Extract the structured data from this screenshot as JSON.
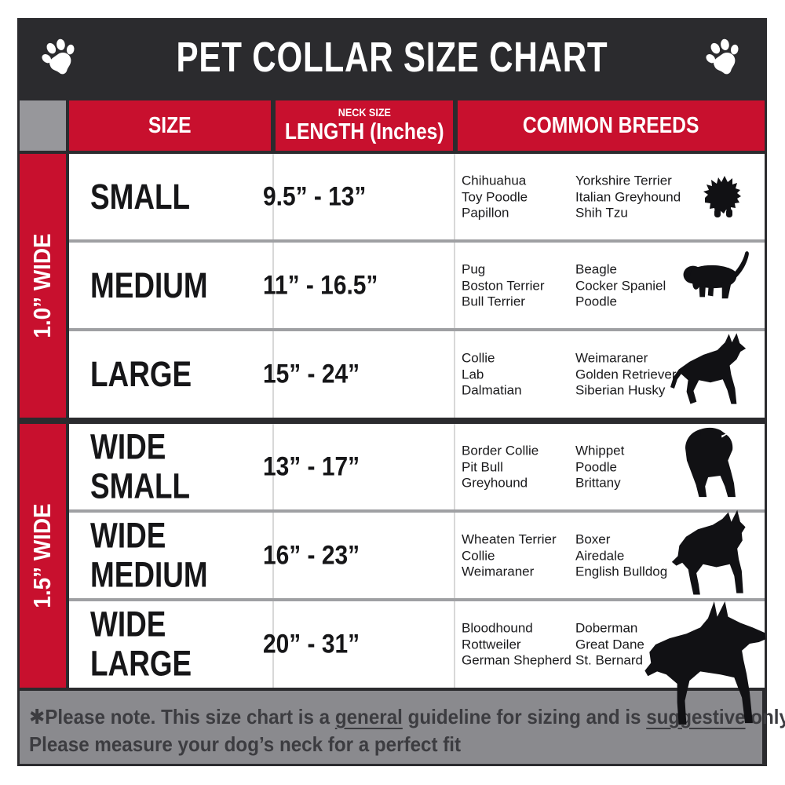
{
  "title": "PET COLLAR SIZE CHART",
  "colors": {
    "accent_red": "#c8102e",
    "header_dark": "#2b2b2e",
    "corner_gray": "#97979b",
    "footer_gray": "#8a8a8e"
  },
  "icons": {
    "header_left": "paw-icon",
    "header_right": "paw-icon",
    "row_dogs": [
      "pomeranian-dog-silhouette",
      "beagle-dog-silhouette",
      "german-shepherd-dog-silhouette",
      "bulldog-dog-silhouette",
      "pit-bull-dog-silhouette",
      "doberman-dog-silhouette"
    ]
  },
  "columns": {
    "size": "SIZE",
    "neck_size_small": "NECK SIZE",
    "neck_size_big": "LENGTH (Inches)",
    "breeds": "COMMON BREEDS"
  },
  "groups": [
    {
      "label": "1.0” WIDE"
    },
    {
      "label": "1.5” WIDE"
    }
  ],
  "rows": [
    {
      "size": "SMALL",
      "length": "9.5” - 13”",
      "breeds_primary": [
        "Chihuahua",
        "Toy Poodle",
        "Papillon"
      ],
      "breeds_secondary": [
        "Yorkshire Terrier",
        "Italian Greyhound",
        "Shih Tzu"
      ]
    },
    {
      "size": "MEDIUM",
      "length": "11” - 16.5”",
      "breeds_primary": [
        "Pug",
        "Boston Terrier",
        "Bull Terrier"
      ],
      "breeds_secondary": [
        "Beagle",
        "Cocker Spaniel",
        "Poodle"
      ]
    },
    {
      "size": "LARGE",
      "length": "15” - 24”",
      "breeds_primary": [
        "Collie",
        "Lab",
        "Dalmatian"
      ],
      "breeds_secondary": [
        "Weimaraner",
        "Golden Retriever",
        "Siberian Husky"
      ]
    },
    {
      "size": "WIDE SMALL",
      "length": "13” - 17”",
      "breeds_primary": [
        "Border Collie",
        "Pit Bull",
        "Greyhound"
      ],
      "breeds_secondary": [
        "Whippet",
        "Poodle",
        "Brittany"
      ]
    },
    {
      "size": "WIDE MEDIUM",
      "length": "16” - 23”",
      "breeds_primary": [
        "Wheaten Terrier",
        "Collie",
        "Weimaraner"
      ],
      "breeds_secondary": [
        "Boxer",
        "Airedale",
        "English Bulldog"
      ]
    },
    {
      "size": "WIDE LARGE",
      "length": "20” - 31”",
      "breeds_primary": [
        "Bloodhound",
        "Rottweiler",
        "German Shepherd"
      ],
      "breeds_secondary": [
        "Doberman",
        "Great Dane",
        "St. Bernard"
      ]
    }
  ],
  "footer": {
    "asterisk": "✱",
    "line1_pre": "Please note. This size chart is a ",
    "line1_u1": "general",
    "line1_mid": " guideline for sizing and is ",
    "line1_u2": "suggestive",
    "line1_post": " only.",
    "line2": "Please measure your dog’s neck for a perfect fit"
  }
}
